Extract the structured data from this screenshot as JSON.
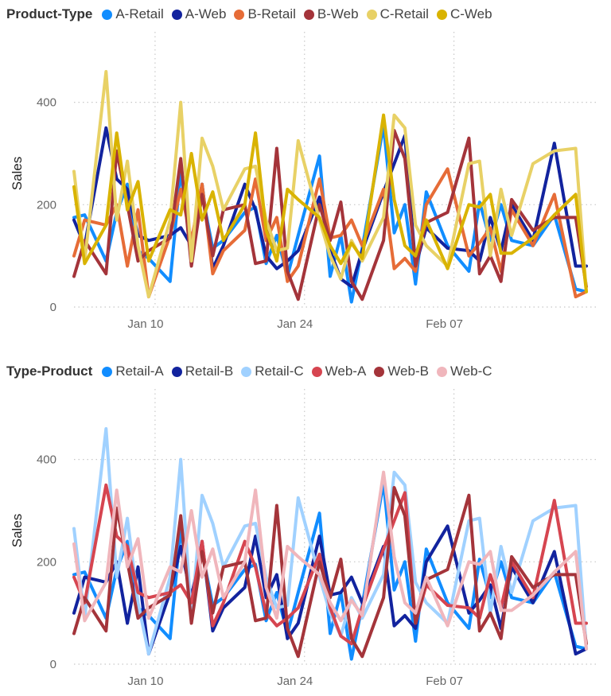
{
  "chart_data": [
    {
      "type": "line",
      "legend_title": "Product-Type",
      "ylabel": "Sales",
      "xlabel": "",
      "ylim": [
        0,
        460
      ],
      "yticks": [
        0,
        200,
        400
      ],
      "x_range": [
        "2024-01-03",
        "2024-02-20"
      ],
      "xticks": [
        {
          "date": "2024-01-10",
          "label": "Jan 10"
        },
        {
          "date": "2024-01-24",
          "label": "Jan 24"
        },
        {
          "date": "2024-02-07",
          "label": "Feb 07"
        }
      ],
      "grid": true,
      "legend_position": "top-left",
      "x": [
        "2024-01-03",
        "2024-01-04",
        "2024-01-06",
        "2024-01-07",
        "2024-01-08",
        "2024-01-09",
        "2024-01-10",
        "2024-01-12",
        "2024-01-13",
        "2024-01-14",
        "2024-01-15",
        "2024-01-16",
        "2024-01-17",
        "2024-01-19",
        "2024-01-20",
        "2024-01-21",
        "2024-01-22",
        "2024-01-23",
        "2024-01-24",
        "2024-01-26",
        "2024-01-27",
        "2024-01-28",
        "2024-01-29",
        "2024-01-30",
        "2024-02-01",
        "2024-02-02",
        "2024-02-03",
        "2024-02-04",
        "2024-02-05",
        "2024-02-07",
        "2024-02-09",
        "2024-02-10",
        "2024-02-11",
        "2024-02-12",
        "2024-02-13",
        "2024-02-15",
        "2024-02-17",
        "2024-02-19",
        "2024-02-20"
      ],
      "series": [
        {
          "name": "A-Retail",
          "color": "#118DFF",
          "values": [
            175,
            180,
            90,
            185,
            240,
            110,
            95,
            50,
            265,
            110,
            220,
            115,
            130,
            185,
            195,
            85,
            140,
            60,
            140,
            295,
            60,
            140,
            10,
            115,
            355,
            145,
            200,
            45,
            225,
            120,
            70,
            205,
            130,
            200,
            130,
            120,
            180,
            35,
            30
          ]
        },
        {
          "name": "A-Web",
          "color": "#12239E",
          "values": [
            170,
            120,
            350,
            250,
            230,
            140,
            130,
            140,
            155,
            120,
            240,
            75,
            120,
            240,
            190,
            100,
            75,
            90,
            110,
            215,
            110,
            55,
            40,
            110,
            225,
            280,
            335,
            80,
            155,
            115,
            110,
            90,
            175,
            110,
            200,
            130,
            320,
            80,
            80
          ]
        },
        {
          "name": "B-Retail",
          "color": "#E66C37",
          "values": [
            100,
            170,
            160,
            200,
            80,
            190,
            20,
            140,
            230,
            130,
            240,
            65,
            110,
            150,
            250,
            130,
            175,
            50,
            80,
            250,
            135,
            140,
            170,
            120,
            230,
            75,
            95,
            70,
            200,
            270,
            100,
            125,
            155,
            70,
            190,
            120,
            220,
            20,
            30
          ]
        },
        {
          "name": "B-Web",
          "color": "#A4343A",
          "values": [
            60,
            130,
            65,
            305,
            200,
            90,
            110,
            135,
            290,
            80,
            220,
            100,
            190,
            200,
            85,
            90,
            310,
            70,
            15,
            200,
            130,
            205,
            50,
            15,
            130,
            345,
            290,
            80,
            165,
            185,
            330,
            65,
            100,
            50,
            210,
            150,
            175,
            175,
            40
          ]
        },
        {
          "name": "C-Retail",
          "color": "#E8D166",
          "values": [
            265,
            90,
            460,
            170,
            285,
            120,
            20,
            170,
            400,
            90,
            330,
            275,
            190,
            270,
            275,
            170,
            110,
            115,
            325,
            170,
            100,
            55,
            130,
            90,
            175,
            375,
            350,
            160,
            120,
            80,
            280,
            285,
            100,
            230,
            140,
            280,
            305,
            310,
            30
          ]
        },
        {
          "name": "C-Web",
          "color": "#D9B300",
          "values": [
            235,
            85,
            160,
            340,
            190,
            245,
            90,
            190,
            180,
            300,
            170,
            225,
            130,
            200,
            340,
            150,
            90,
            230,
            210,
            175,
            120,
            85,
            125,
            95,
            375,
            210,
            120,
            100,
            170,
            75,
            200,
            195,
            220,
            105,
            105,
            135,
            180,
            220,
            30
          ]
        }
      ]
    },
    {
      "type": "line",
      "legend_title": "Type-Product",
      "ylabel": "Sales",
      "xlabel": "",
      "ylim": [
        0,
        460
      ],
      "yticks": [
        0,
        200,
        400
      ],
      "x_range": [
        "2024-01-03",
        "2024-02-20"
      ],
      "xticks": [
        {
          "date": "2024-01-10",
          "label": "Jan 10"
        },
        {
          "date": "2024-01-24",
          "label": "Jan 24"
        },
        {
          "date": "2024-02-07",
          "label": "Feb 07"
        }
      ],
      "grid": true,
      "legend_position": "top-left",
      "x": [
        "2024-01-03",
        "2024-01-04",
        "2024-01-06",
        "2024-01-07",
        "2024-01-08",
        "2024-01-09",
        "2024-01-10",
        "2024-01-12",
        "2024-01-13",
        "2024-01-14",
        "2024-01-15",
        "2024-01-16",
        "2024-01-17",
        "2024-01-19",
        "2024-01-20",
        "2024-01-21",
        "2024-01-22",
        "2024-01-23",
        "2024-01-24",
        "2024-01-26",
        "2024-01-27",
        "2024-01-28",
        "2024-01-29",
        "2024-01-30",
        "2024-02-01",
        "2024-02-02",
        "2024-02-03",
        "2024-02-04",
        "2024-02-05",
        "2024-02-07",
        "2024-02-09",
        "2024-02-10",
        "2024-02-11",
        "2024-02-12",
        "2024-02-13",
        "2024-02-15",
        "2024-02-17",
        "2024-02-19",
        "2024-02-20"
      ],
      "series": [
        {
          "name": "Retail-A",
          "color": "#118DFF",
          "values": [
            175,
            180,
            90,
            185,
            240,
            110,
            95,
            50,
            265,
            110,
            220,
            115,
            130,
            185,
            195,
            85,
            140,
            60,
            140,
            295,
            60,
            140,
            10,
            115,
            355,
            145,
            200,
            45,
            225,
            120,
            70,
            205,
            130,
            200,
            130,
            120,
            180,
            35,
            30
          ]
        },
        {
          "name": "Retail-B",
          "color": "#12239E",
          "values": [
            100,
            170,
            160,
            200,
            80,
            190,
            20,
            140,
            230,
            130,
            240,
            65,
            110,
            150,
            250,
            130,
            175,
            50,
            80,
            250,
            135,
            140,
            170,
            120,
            230,
            75,
            95,
            70,
            200,
            270,
            100,
            125,
            155,
            70,
            190,
            120,
            220,
            20,
            30
          ]
        },
        {
          "name": "Retail-C",
          "color": "#A0D1FF",
          "values": [
            265,
            90,
            460,
            170,
            285,
            120,
            20,
            170,
            400,
            90,
            330,
            275,
            190,
            270,
            275,
            170,
            110,
            115,
            325,
            170,
            100,
            55,
            130,
            90,
            175,
            375,
            350,
            160,
            120,
            80,
            280,
            285,
            100,
            230,
            140,
            280,
            305,
            310,
            30
          ]
        },
        {
          "name": "Web-A",
          "color": "#D64550",
          "values": [
            170,
            120,
            350,
            250,
            230,
            140,
            130,
            140,
            155,
            120,
            240,
            75,
            120,
            240,
            190,
            100,
            75,
            90,
            110,
            215,
            110,
            55,
            40,
            110,
            225,
            280,
            335,
            80,
            155,
            115,
            110,
            90,
            175,
            110,
            200,
            130,
            320,
            80,
            80
          ]
        },
        {
          "name": "Web-B",
          "color": "#A4343A",
          "values": [
            60,
            130,
            65,
            305,
            200,
            90,
            110,
            135,
            290,
            80,
            220,
            100,
            190,
            200,
            85,
            90,
            310,
            70,
            15,
            200,
            130,
            205,
            50,
            15,
            130,
            345,
            290,
            80,
            165,
            185,
            330,
            65,
            100,
            50,
            210,
            150,
            175,
            175,
            40
          ]
        },
        {
          "name": "Web-C",
          "color": "#F0B6BC",
          "values": [
            235,
            85,
            160,
            340,
            190,
            245,
            90,
            190,
            180,
            300,
            170,
            225,
            130,
            200,
            340,
            150,
            90,
            230,
            210,
            175,
            120,
            85,
            125,
            95,
            375,
            210,
            120,
            100,
            170,
            75,
            200,
            195,
            220,
            105,
            105,
            135,
            180,
            220,
            30
          ]
        }
      ]
    }
  ]
}
